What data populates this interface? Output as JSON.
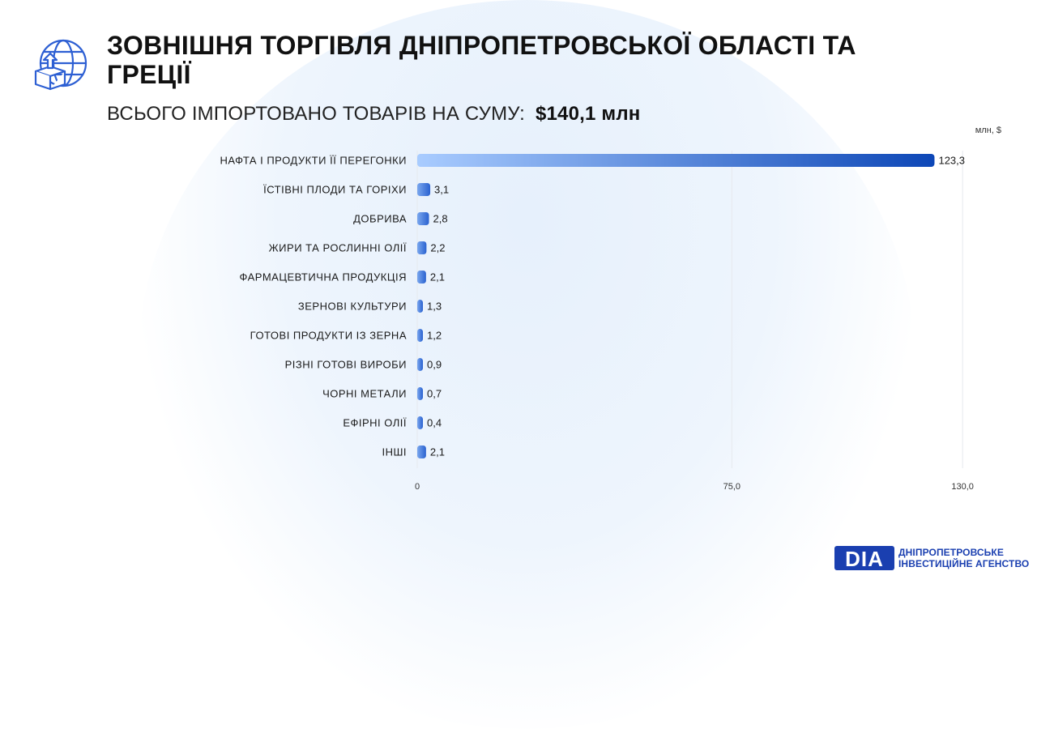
{
  "header": {
    "title": "ЗОВНІШНЯ ТОРГІВЛЯ ДНІПРОПЕТРОВСЬКОЇ ОБЛАСТІ ТА ГРЕЦІЇ",
    "subtitle_label": "ВСЬОГО ІМПОРТОВАНО ТОВАРІВ НА СУМУ:",
    "subtitle_amount": "$140,1 млн",
    "icon": "globe-box-upload-icon"
  },
  "chart_data": {
    "type": "bar",
    "orientation": "horizontal",
    "unit_label": "млн, $",
    "categories": [
      "НАФТА І ПРОДУКТИ ЇЇ ПЕРЕГОНКИ",
      "ЇСТІВНІ ПЛОДИ ТА ГОРІХИ",
      "ДОБРИВА",
      "ЖИРИ ТА РОСЛИННІ ОЛІЇ",
      "ФАРМАЦЕВТИЧНА ПРОДУКЦІЯ",
      "ЗЕРНОВІ КУЛЬТУРИ",
      "ГОТОВІ ПРОДУКТИ ІЗ ЗЕРНА",
      "РІЗНІ ГОТОВІ ВИРОБИ",
      "ЧОРНІ МЕТАЛИ",
      "ЕФІРНІ ОЛІЇ",
      "ІНШІ"
    ],
    "values": [
      123.3,
      3.1,
      2.8,
      2.2,
      2.1,
      1.3,
      1.2,
      0.9,
      0.7,
      0.4,
      2.1
    ],
    "value_labels": [
      "123,3",
      "3,1",
      "2,8",
      "2,2",
      "2,1",
      "1,3",
      "1,2",
      "0,9",
      "0,7",
      "0,4",
      "2,1"
    ],
    "xlim": [
      0,
      137.5
    ],
    "ticks": [
      0,
      75,
      130
    ],
    "tick_labels": [
      "0",
      "75,0",
      "130,0"
    ],
    "grid": true,
    "colors": {
      "bar_start": "#a9ccff",
      "bar_end": "#0d47b7",
      "grid": "#e6e9ee"
    }
  },
  "footer": {
    "logo_mark": "DIA",
    "logo_line1": "ДНІПРОПЕТРОВСЬКЕ",
    "logo_line2": "ІНВЕСТИЦІЙНЕ АГЕНСТВО",
    "brand_color": "#1a3fb0"
  }
}
